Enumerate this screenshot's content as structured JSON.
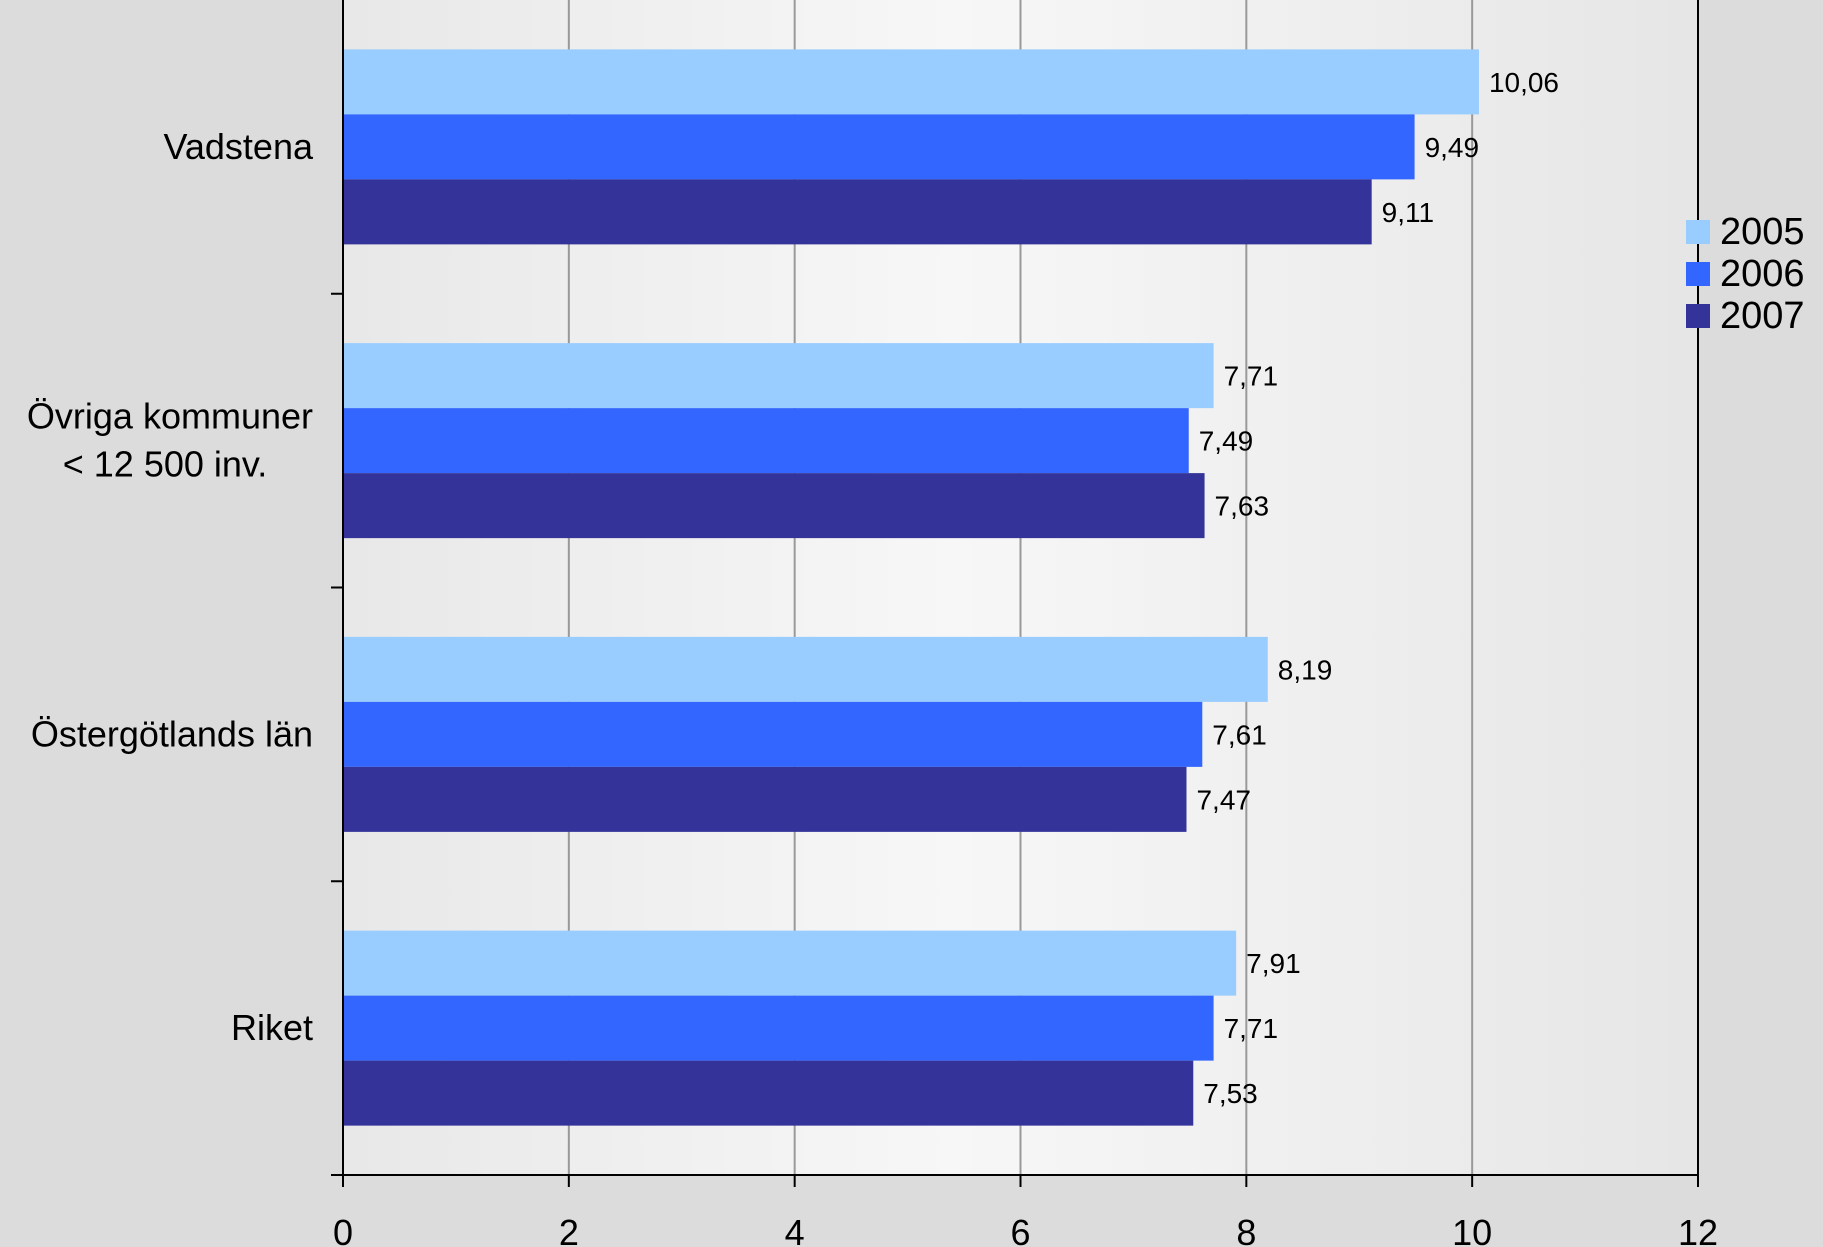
{
  "chart_data": {
    "type": "bar",
    "orientation": "horizontal",
    "categories": [
      "Vadstena",
      "Övriga kommuner\n< 12 500 inv.",
      "Östergötlands län",
      "Riket"
    ],
    "series": [
      {
        "name": "2005",
        "color": "#99ccff",
        "values": [
          10.06,
          7.71,
          8.19,
          7.91
        ],
        "labels": [
          "10,06",
          "7,71",
          "8,19",
          "7,91"
        ]
      },
      {
        "name": "2006",
        "color": "#3366ff",
        "values": [
          9.49,
          7.49,
          7.61,
          7.71
        ],
        "labels": [
          "9,49",
          "7,49",
          "7,61",
          "7,71"
        ]
      },
      {
        "name": "2007",
        "color": "#333399",
        "values": [
          9.11,
          7.63,
          7.47,
          7.53
        ],
        "labels": [
          "9,11",
          "7,63",
          "7,47",
          "7,53"
        ]
      }
    ],
    "xlim": [
      0,
      12
    ],
    "xticks": [
      0,
      2,
      4,
      6,
      8,
      10,
      12
    ],
    "xtick_labels": [
      "0",
      "2",
      "4",
      "6",
      "8",
      "10",
      "12"
    ],
    "grid": "vertical",
    "legend": "right",
    "plot_background": "gradient-gray",
    "title": ""
  }
}
